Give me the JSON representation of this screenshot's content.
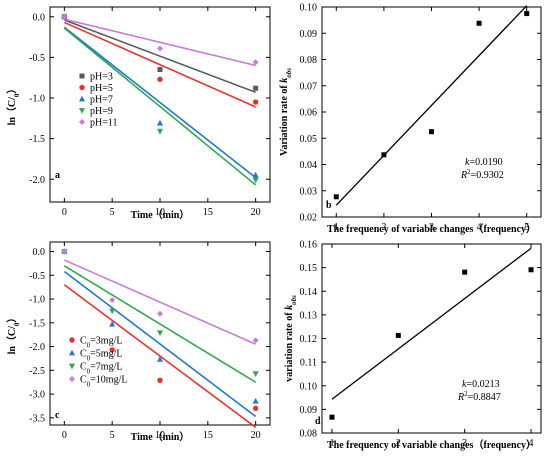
{
  "chart_data": [
    {
      "panel": "a",
      "type": "scatter",
      "xlabel": "Time（min）",
      "ylabel": "ln（C/C0）",
      "xlim": [
        -1.5,
        21.5
      ],
      "ylim": [
        -2.28,
        0.12
      ],
      "xticks": [
        0,
        5,
        10,
        15,
        20
      ],
      "yticks": [
        0.0,
        -0.5,
        -1.0,
        -1.5,
        -2.0
      ],
      "ytick_labels": [
        "0.0",
        "-0.5",
        "-1.0",
        "-1.5",
        "-2.0"
      ],
      "legend": "left",
      "grid": false,
      "series": [
        {
          "name": "pH=3",
          "color": "#595959",
          "marker": "square",
          "x": [
            0,
            10,
            20
          ],
          "y": [
            0.0,
            -0.65,
            -0.88
          ],
          "fit": {
            "x": [
              0,
              20
            ],
            "y": [
              -0.04,
              -0.93
            ]
          }
        },
        {
          "name": "pH=5",
          "color": "#e8332d",
          "marker": "circle",
          "x": [
            0,
            10,
            20
          ],
          "y": [
            0.0,
            -0.77,
            -1.05
          ],
          "fit": {
            "x": [
              0,
              20
            ],
            "y": [
              -0.07,
              -1.11
            ]
          }
        },
        {
          "name": "pH=7",
          "color": "#1f77d4",
          "marker": "triangle-up",
          "x": [
            0,
            10,
            20
          ],
          "y": [
            0.0,
            -1.31,
            -1.95
          ],
          "fit": {
            "x": [
              0,
              20
            ],
            "y": [
              -0.13,
              -1.98
            ]
          }
        },
        {
          "name": "pH=9",
          "color": "#2fa84f",
          "marker": "triangle-down",
          "x": [
            0,
            10,
            20
          ],
          "y": [
            0.0,
            -1.41,
            -2.01
          ],
          "fit": {
            "x": [
              0,
              20
            ],
            "y": [
              -0.14,
              -2.07
            ]
          }
        },
        {
          "name": "pH=11",
          "color": "#c77cdb",
          "marker": "diamond",
          "x": [
            0,
            10,
            20
          ],
          "y": [
            0.0,
            -0.39,
            -0.56
          ],
          "fit": {
            "x": [
              0,
              20
            ],
            "y": [
              -0.03,
              -0.6
            ]
          }
        }
      ]
    },
    {
      "panel": "b",
      "type": "scatter",
      "xlabel": "The frequency of variable changes（frequency）",
      "ylabel": "Variation rate of kobs",
      "xlim": [
        0.7,
        5.3
      ],
      "ylim": [
        0.02,
        0.1
      ],
      "xticks": [
        1,
        2,
        3,
        4,
        5
      ],
      "yticks": [
        0.02,
        0.03,
        0.04,
        0.05,
        0.06,
        0.07,
        0.08,
        0.09,
        0.1
      ],
      "ytick_labels": [
        "0.02",
        "0.03",
        "0.04",
        "0.05",
        "0.06",
        "0.07",
        "0.08",
        "0.09",
        "0.10"
      ],
      "annotations": [
        "k=0.0190",
        "R2=0.9302"
      ],
      "series": [
        {
          "color": "#000000",
          "marker": "square",
          "x": [
            1,
            2,
            3,
            4,
            5
          ],
          "y": [
            0.0277,
            0.0437,
            0.0525,
            0.0938,
            0.0975
          ],
          "fit": {
            "x": [
              1,
              5
            ],
            "y": [
              0.0245,
              0.1005
            ]
          }
        }
      ]
    },
    {
      "panel": "c",
      "type": "scatter",
      "xlabel": "Time（min）",
      "ylabel": "ln（C/C0）",
      "xlim": [
        -1.5,
        21.5
      ],
      "ylim": [
        -3.65,
        0.2
      ],
      "xticks": [
        0,
        5,
        10,
        15,
        20
      ],
      "yticks": [
        0.0,
        -0.5,
        -1.0,
        -1.5,
        -2.0,
        -2.5,
        -3.0,
        -3.5
      ],
      "ytick_labels": [
        "0.0",
        "-0.5",
        "-1.0",
        "-1.5",
        "-2.0",
        "-2.5",
        "-3.0",
        "-3.5"
      ],
      "legend": "lower-left",
      "series": [
        {
          "name": "C0=3mg/L",
          "color": "#e8332d",
          "marker": "circle",
          "x": [
            0,
            5,
            10,
            20
          ],
          "y": [
            0.0,
            -2.07,
            -2.71,
            -3.3
          ],
          "fit": {
            "x": [
              0,
              20
            ],
            "y": [
              -0.7,
              -3.7
            ]
          }
        },
        {
          "name": "C0=5mg/L",
          "color": "#1f77d4",
          "marker": "triangle-up",
          "x": [
            0,
            5,
            10,
            20
          ],
          "y": [
            0.0,
            -1.53,
            -2.27,
            -3.15
          ],
          "fit": {
            "x": [
              0,
              20
            ],
            "y": [
              -0.42,
              -3.47
            ]
          }
        },
        {
          "name": "C0=7mg/L",
          "color": "#2fa84f",
          "marker": "triangle-down",
          "x": [
            0,
            5,
            10,
            20
          ],
          "y": [
            0.0,
            -1.25,
            -1.71,
            -2.57
          ],
          "fit": {
            "x": [
              0,
              20
            ],
            "y": [
              -0.3,
              -2.75
            ]
          }
        },
        {
          "name": "C0=10mg/L",
          "color": "#c77cdb",
          "marker": "diamond",
          "x": [
            0,
            5,
            10,
            20
          ],
          "y": [
            0.0,
            -1.02,
            -1.31,
            -1.87
          ],
          "fit": {
            "x": [
              0,
              20
            ],
            "y": [
              -0.18,
              -1.95
            ]
          }
        }
      ]
    },
    {
      "panel": "d",
      "type": "scatter",
      "xlabel": "The frequency of variable changes（frequency）",
      "ylabel": "variation rate of kobs",
      "xlim": [
        0.85,
        4.15
      ],
      "ylim": [
        0.08,
        0.16
      ],
      "xticks": [
        1,
        2,
        3,
        4
      ],
      "yticks": [
        0.08,
        0.09,
        0.1,
        0.11,
        0.12,
        0.13,
        0.14,
        0.15,
        0.16
      ],
      "ytick_labels": [
        "0.08",
        "0.09",
        "0.10",
        "0.11",
        "0.12",
        "0.13",
        "0.14",
        "0.15",
        "0.16"
      ],
      "annotations": [
        "k=0.0213",
        "R2=0.8847"
      ],
      "series": [
        {
          "color": "#000000",
          "marker": "square",
          "x": [
            1,
            2,
            3,
            4
          ],
          "y": [
            0.0867,
            0.1213,
            0.1481,
            0.1491
          ],
          "fit": {
            "x": [
              1,
              4
            ],
            "y": [
              0.0943,
              0.1582
            ]
          }
        }
      ]
    }
  ]
}
